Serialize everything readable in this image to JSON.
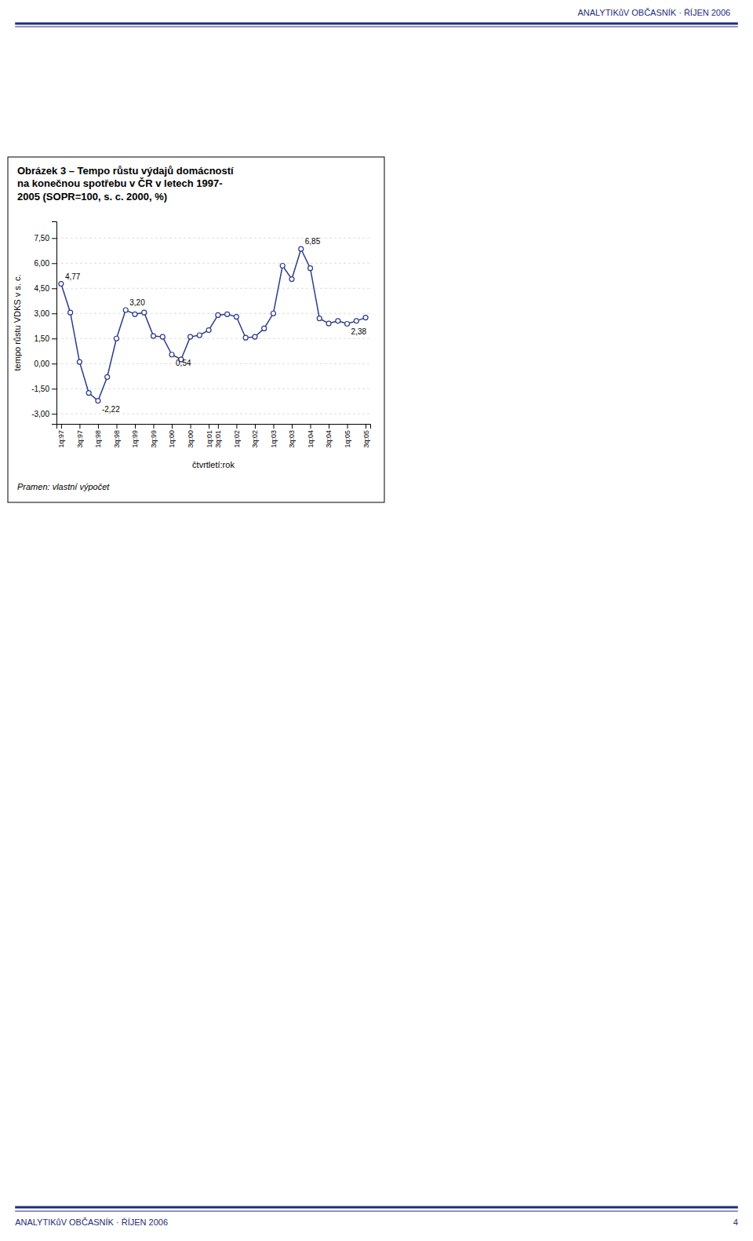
{
  "chart_data": {
    "type": "line",
    "title": "Obrázek 3 – Tempo růstu výdajů domácností\nna konečnou spotřebu v ČR v letech 1997-\n2005 (SOPR=100, s. c. 2000, %)",
    "y_label": "tempo růstu VDKS v s. c.",
    "x_label": "čtvrtletí:rok",
    "source": "Pramen: vlastní výpočet",
    "color": "#2B3B8C",
    "marker": "circle",
    "grid": true,
    "categories": [
      "1q:97",
      null,
      "3q:97",
      null,
      "1q:98",
      null,
      "3q:98",
      null,
      "1q:99",
      null,
      "3q:99",
      null,
      "1q:00",
      null,
      "3q:00",
      null,
      "1q:01",
      "3q:01",
      null,
      "1q:02",
      null,
      "3q:02",
      null,
      "1q:03",
      null,
      "3q:03",
      null,
      "1q:04",
      null,
      "3q:04",
      null,
      "1q:05",
      null,
      "3q:05"
    ],
    "values": [
      4.77,
      3.05,
      0.1,
      -1.75,
      -2.22,
      -0.8,
      1.5,
      3.2,
      2.95,
      3.05,
      1.65,
      1.6,
      0.54,
      0.25,
      1.6,
      1.7,
      2.0,
      2.9,
      2.95,
      2.8,
      1.55,
      1.6,
      2.1,
      3.0,
      5.85,
      5.05,
      6.85,
      5.7,
      2.7,
      2.4,
      2.55,
      2.38,
      2.55,
      2.75
    ],
    "ylim": [
      -3.6,
      8.5
    ],
    "yticks": [
      {
        "value": -3.0,
        "label": "-3,00"
      },
      {
        "value": -1.5,
        "label": "-1,50"
      },
      {
        "value": 0.0,
        "label": "0,00"
      },
      {
        "value": 1.5,
        "label": "1,50"
      },
      {
        "value": 3.0,
        "label": "3,00"
      },
      {
        "value": 4.5,
        "label": "4,50"
      },
      {
        "value": 6.0,
        "label": "6,00"
      },
      {
        "value": 7.5,
        "label": "7,50"
      }
    ],
    "annotations": [
      {
        "index": 0,
        "value": 4.77,
        "text": "4,77"
      },
      {
        "index": 7,
        "value": 3.2,
        "text": "3,20"
      },
      {
        "index": 4,
        "value": -2.22,
        "text": "-2,22"
      },
      {
        "index": 12,
        "value": 0.54,
        "text": "0,54"
      },
      {
        "index": 26,
        "value": 6.85,
        "text": "6,85"
      },
      {
        "index": 31,
        "value": 2.38,
        "text": "2,38"
      }
    ]
  },
  "page": {
    "header": "ANALYTIKůV OBČASNÍK · ŘÍJEN 2006",
    "footer": "ANALYTIKůV OBČASNÍK · ŘÍJEN 2006",
    "page_number": "4"
  }
}
